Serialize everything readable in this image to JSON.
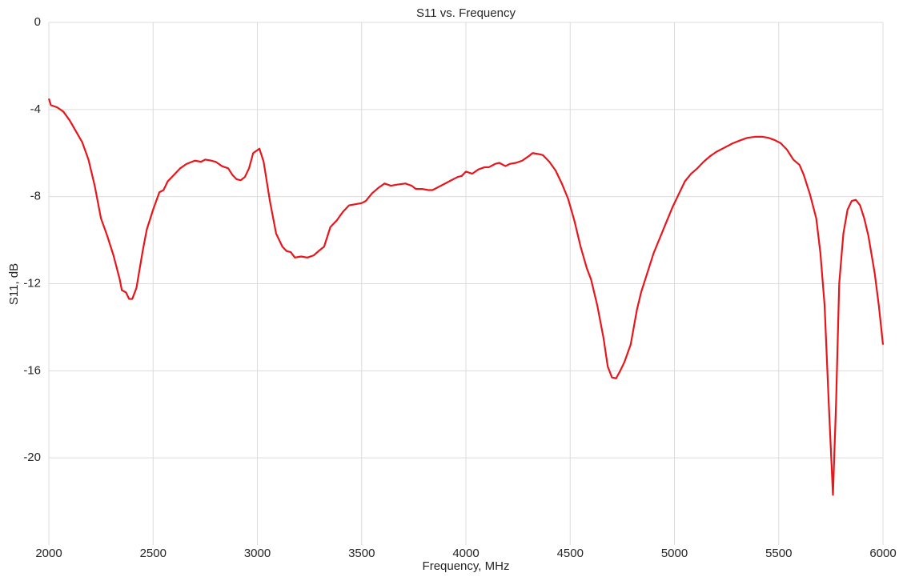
{
  "chart_data": {
    "type": "line",
    "title": "S11 vs. Frequency",
    "x_label": "Frequency, MHz",
    "y_label": "S11, dB",
    "color": "#e8161b",
    "grid": true,
    "xlim": [
      2000,
      6000
    ],
    "xticks": [
      2000,
      2500,
      3000,
      3500,
      4000,
      4500,
      5000,
      5500,
      6000
    ],
    "ylim": [
      -24,
      0
    ],
    "yticks": [
      0,
      -4,
      -8,
      -12,
      -16,
      -20
    ],
    "x": [
      2000,
      2010,
      2040,
      2070,
      2100,
      2130,
      2160,
      2190,
      2220,
      2250,
      2280,
      2310,
      2340,
      2350,
      2370,
      2385,
      2400,
      2420,
      2450,
      2470,
      2500,
      2530,
      2550,
      2570,
      2600,
      2630,
      2660,
      2700,
      2730,
      2750,
      2780,
      2800,
      2830,
      2860,
      2880,
      2900,
      2920,
      2940,
      2960,
      2980,
      3010,
      3030,
      3060,
      3090,
      3120,
      3140,
      3160,
      3180,
      3210,
      3240,
      3270,
      3300,
      3320,
      3350,
      3380,
      3410,
      3440,
      3470,
      3500,
      3520,
      3550,
      3580,
      3610,
      3640,
      3670,
      3710,
      3740,
      3760,
      3790,
      3820,
      3840,
      3870,
      3900,
      3930,
      3960,
      3980,
      4000,
      4030,
      4060,
      4090,
      4110,
      4140,
      4160,
      4190,
      4210,
      4240,
      4270,
      4300,
      4320,
      4350,
      4370,
      4400,
      4430,
      4460,
      4490,
      4520,
      4550,
      4580,
      4600,
      4630,
      4660,
      4680,
      4700,
      4720,
      4740,
      4760,
      4790,
      4820,
      4840,
      4870,
      4900,
      4930,
      4960,
      4990,
      5020,
      5050,
      5080,
      5110,
      5140,
      5170,
      5200,
      5240,
      5280,
      5320,
      5350,
      5390,
      5420,
      5450,
      5480,
      5510,
      5540,
      5570,
      5600,
      5620,
      5650,
      5680,
      5700,
      5720,
      5740,
      5760,
      5775,
      5790,
      5810,
      5830,
      5850,
      5870,
      5890,
      5910,
      5930,
      5960,
      5980,
      6000
    ],
    "values": [
      -3.5,
      -3.8,
      -3.9,
      -4.1,
      -4.5,
      -5.0,
      -5.5,
      -6.3,
      -7.5,
      -9.0,
      -9.8,
      -10.7,
      -11.8,
      -12.3,
      -12.4,
      -12.7,
      -12.7,
      -12.2,
      -10.5,
      -9.5,
      -8.6,
      -7.8,
      -7.7,
      -7.3,
      -7.0,
      -6.7,
      -6.5,
      -6.35,
      -6.4,
      -6.3,
      -6.35,
      -6.4,
      -6.6,
      -6.7,
      -7.0,
      -7.2,
      -7.25,
      -7.1,
      -6.7,
      -6.0,
      -5.8,
      -6.4,
      -8.2,
      -9.7,
      -10.3,
      -10.5,
      -10.55,
      -10.8,
      -10.75,
      -10.8,
      -10.7,
      -10.45,
      -10.3,
      -9.4,
      -9.1,
      -8.7,
      -8.4,
      -8.35,
      -8.3,
      -8.2,
      -7.85,
      -7.6,
      -7.4,
      -7.5,
      -7.45,
      -7.4,
      -7.5,
      -7.65,
      -7.65,
      -7.7,
      -7.7,
      -7.55,
      -7.4,
      -7.25,
      -7.1,
      -7.05,
      -6.85,
      -6.95,
      -6.75,
      -6.65,
      -6.65,
      -6.5,
      -6.45,
      -6.6,
      -6.5,
      -6.45,
      -6.35,
      -6.15,
      -6.0,
      -6.05,
      -6.1,
      -6.4,
      -6.8,
      -7.4,
      -8.1,
      -9.1,
      -10.3,
      -11.3,
      -11.8,
      -13.0,
      -14.5,
      -15.8,
      -16.3,
      -16.35,
      -16.0,
      -15.6,
      -14.8,
      -13.2,
      -12.4,
      -11.5,
      -10.6,
      -9.9,
      -9.2,
      -8.5,
      -7.9,
      -7.3,
      -6.95,
      -6.7,
      -6.4,
      -6.15,
      -5.95,
      -5.75,
      -5.55,
      -5.4,
      -5.3,
      -5.25,
      -5.25,
      -5.3,
      -5.4,
      -5.55,
      -5.85,
      -6.3,
      -6.55,
      -7.0,
      -7.9,
      -9.0,
      -10.6,
      -13.0,
      -17.5,
      -21.7,
      -17.5,
      -12.0,
      -9.7,
      -8.6,
      -8.2,
      -8.15,
      -8.4,
      -9.0,
      -9.8,
      -11.5,
      -13.0,
      -14.8
    ]
  }
}
